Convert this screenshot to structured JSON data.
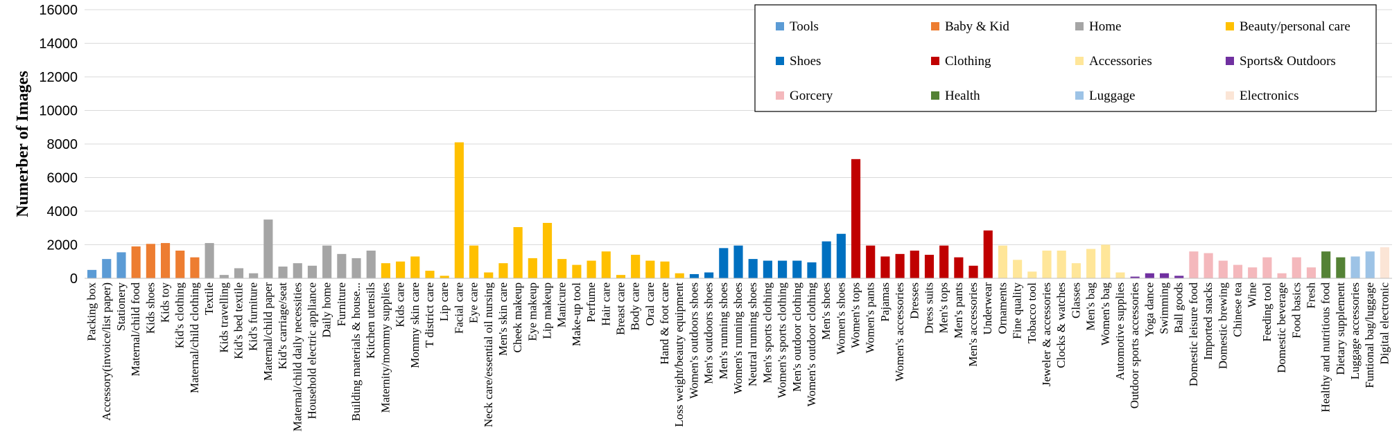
{
  "chart_data": {
    "type": "bar",
    "title": "",
    "xlabel": "",
    "ylabel": "Numerber of Images",
    "ylim": [
      0,
      16000
    ],
    "yticks": [
      "0",
      "2000",
      "4000",
      "6000",
      "8000",
      "10000",
      "12000",
      "14000",
      "16000"
    ],
    "grid": "horizontal",
    "legend_position": "top-right",
    "series": [
      {
        "name": "Tools",
        "color": "#5b9bd5",
        "categories": [
          "Packing box",
          "Accessory(invoice/list paper)",
          "Stationery"
        ],
        "values": [
          500,
          1150,
          1550
        ]
      },
      {
        "name": "Baby & Kid",
        "color": "#ed7d31",
        "categories": [
          "Maternal/child food",
          "Kids shoes",
          "Kids toy",
          "Kid's clothing",
          "Maternal/child clothing"
        ],
        "values": [
          1900,
          2050,
          2100,
          1650,
          1250
        ]
      },
      {
        "name": "Home",
        "color": "#a5a5a5",
        "categories": [
          "Textile",
          "Kids travelling",
          "Kid's bed textile",
          "Kid's furniture",
          "Maternal/child paper",
          "Kid's carriage/seat",
          "Maternal/child daily necessities",
          "Household electric appliance",
          "Daily home",
          "Furniture",
          "Building materials & house...",
          "Kitchen utensils"
        ],
        "values": [
          2100,
          200,
          600,
          300,
          3500,
          700,
          900,
          750,
          1950,
          1450,
          1200,
          1650
        ]
      },
      {
        "name": "Beauty/personal care",
        "color": "#ffc000",
        "categories": [
          "Maternity/mommy supplies",
          "Kids care",
          "Mommy skin care",
          "T district care",
          "Lip care",
          "Facial care",
          "Eye care",
          "Neck care/essential oil nursing",
          "Men's skin care",
          "Cheek makeup",
          "Eye makeup",
          "Lip makeup",
          "Manicure",
          "Make-up tool",
          "Perfume",
          "Hair care",
          "Breast care",
          "Body care",
          "Oral care",
          "Hand & foot care",
          "Loss weight/beauty equipment"
        ],
        "values": [
          900,
          1000,
          1300,
          450,
          150,
          8100,
          1950,
          350,
          900,
          3050,
          1200,
          3300,
          1150,
          800,
          1050,
          1600,
          200,
          1400,
          1050,
          1000,
          300
        ]
      },
      {
        "name": "Shoes",
        "color": "#0070c0",
        "categories": [
          "Women's outdoors shoes",
          "Men's outdoors shoes",
          "Men's running shoes",
          "Women's running shoes",
          "Neutral running shoes",
          "Men's sports clothing",
          "Women's sports clothing",
          "Men's outdoor clothing",
          "Women's outdoor clothing",
          "Men's shoes",
          "Women's shoes"
        ],
        "values": [
          250,
          350,
          1800,
          1950,
          1150,
          1050,
          1050,
          1050,
          950,
          2200,
          2650
        ]
      },
      {
        "name": "Clothing",
        "color": "#c00000",
        "categories": [
          "Women's tops",
          "Women's pants",
          "Pajamas",
          "Women's accessories",
          "Dresses",
          "Dress suits",
          "Men's tops",
          "Men's pants",
          "Men's accessories",
          "Underwear"
        ],
        "values": [
          7100,
          1950,
          1300,
          1450,
          1650,
          1400,
          1950,
          1250,
          750,
          2850
        ]
      },
      {
        "name": "Accessories",
        "color": "#ffe699",
        "categories": [
          "Ornaments",
          "Fine quality",
          "Tobacco tool",
          "Jeweler & accessories",
          "Clocks & watches",
          "Glasses",
          "Men's bag",
          "Women's bag",
          "Automotive supplies"
        ],
        "values": [
          1950,
          1100,
          400,
          1650,
          1650,
          900,
          1750,
          2000,
          350
        ]
      },
      {
        "name": "Sports& Outdoors",
        "color": "#7030a0",
        "categories": [
          "Outdoor sports accessories",
          "Yoga dance",
          "Swimming",
          "Ball goods"
        ],
        "values": [
          100,
          300,
          300,
          150
        ]
      },
      {
        "name": "Gorcery",
        "color": "#f4b8bc",
        "categories": [
          "Domestic leisure food",
          "Imported snacks",
          "Domestic brewing",
          "Chinese tea",
          "Wine",
          "Feeding tool",
          "Domestic beverage",
          "Food basics",
          "Fresh"
        ],
        "values": [
          1600,
          1500,
          1050,
          800,
          650,
          1250,
          300,
          1250,
          650
        ]
      },
      {
        "name": "Health",
        "color": "#548235",
        "categories": [
          "Healthy and nutritious food",
          "Dietary supplement"
        ],
        "values": [
          1600,
          1250
        ]
      },
      {
        "name": "Luggage",
        "color": "#9dc3e6",
        "categories": [
          "Luggage accessories",
          "Funtional bag/luggage"
        ],
        "values": [
          1300,
          1600
        ]
      },
      {
        "name": "Electronics",
        "color": "#fbe5d6",
        "categories": [
          "Digital electronic"
        ],
        "values": [
          1850
        ]
      }
    ]
  }
}
